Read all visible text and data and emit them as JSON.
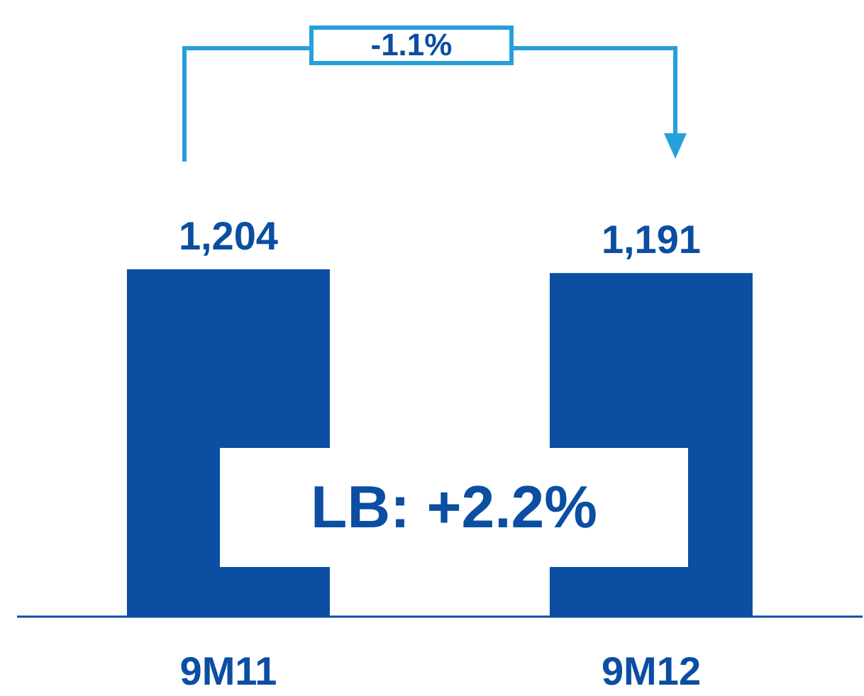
{
  "chart_data": {
    "type": "bar",
    "categories": [
      "9M11",
      "9M12"
    ],
    "values": [
      1204,
      1191
    ],
    "value_labels": [
      "1,204",
      "1,191"
    ],
    "color": "#0b4ea2",
    "annotations": [
      "-1.1%",
      "LB: +2.2%"
    ]
  }
}
